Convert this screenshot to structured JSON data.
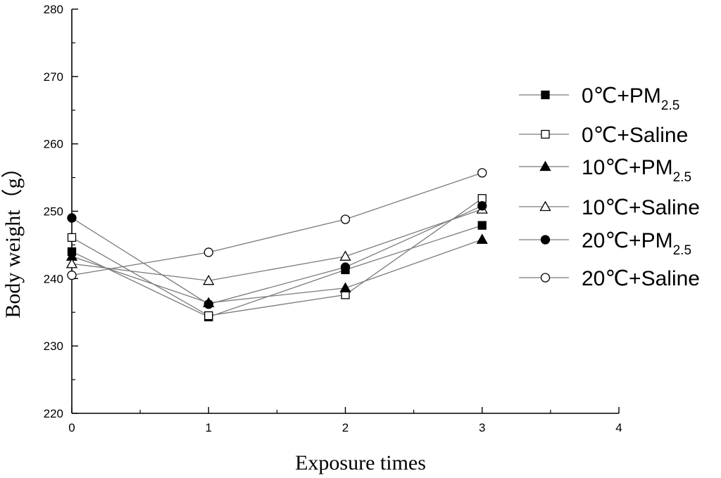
{
  "chart_data": {
    "type": "line",
    "xlabel": "Exposure times",
    "ylabel": "Body weight（g）",
    "xlim": [
      0,
      4
    ],
    "ylim": [
      220,
      280
    ],
    "xticks": [
      "0",
      "1",
      "2",
      "3",
      "4"
    ],
    "yticks": [
      "220",
      "230",
      "240",
      "250",
      "260",
      "270",
      "280"
    ],
    "grid": false,
    "legend_position": "right",
    "x": [
      0,
      1,
      2,
      3
    ],
    "series": [
      {
        "name_main": "0℃+PM",
        "name_sub": "2.5",
        "marker": "square",
        "filled": true,
        "values": [
          244.0,
          234.3,
          241.3,
          247.9
        ]
      },
      {
        "name_main": "0℃+Saline",
        "name_sub": "",
        "marker": "square",
        "filled": false,
        "values": [
          246.1,
          234.5,
          237.6,
          251.9
        ]
      },
      {
        "name_main": "10℃+PM",
        "name_sub": "2.5",
        "marker": "triangle",
        "filled": true,
        "values": [
          243.3,
          236.4,
          238.6,
          245.8
        ]
      },
      {
        "name_main": "10℃+Saline",
        "name_sub": "",
        "marker": "triangle",
        "filled": false,
        "values": [
          242.2,
          239.7,
          243.3,
          250.3
        ]
      },
      {
        "name_main": "20℃+PM",
        "name_sub": "2.5",
        "marker": "circle",
        "filled": true,
        "values": [
          249.0,
          236.2,
          241.7,
          250.8
        ]
      },
      {
        "name_main": "20℃+Saline",
        "name_sub": "",
        "marker": "circle",
        "filled": false,
        "values": [
          240.5,
          243.9,
          248.8,
          255.7
        ]
      }
    ]
  }
}
